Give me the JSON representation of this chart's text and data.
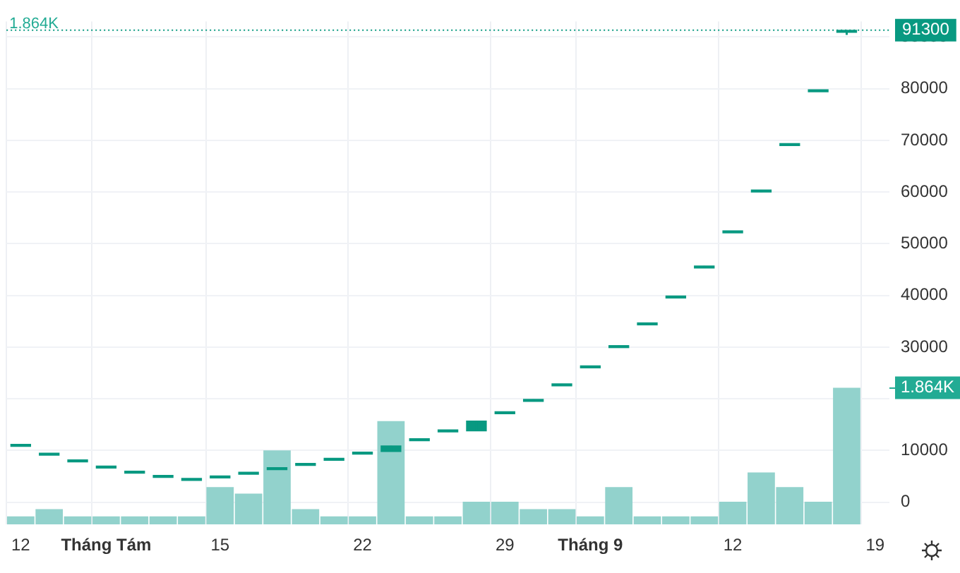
{
  "chart_data": {
    "type": "candlestick",
    "categories": [
      "12",
      null,
      null,
      "Tháng Tám",
      null,
      null,
      null,
      "15",
      null,
      null,
      null,
      null,
      "22",
      null,
      null,
      null,
      null,
      "29",
      null,
      null,
      "Tháng 9",
      null,
      null,
      null,
      null,
      "12",
      null,
      null,
      null,
      null,
      "19"
    ],
    "color": "#089981",
    "ohlc": [
      [
        10800,
        11200,
        10800,
        11200
      ],
      [
        9100,
        9500,
        9100,
        9500
      ],
      [
        7800,
        8200,
        7800,
        8200
      ],
      [
        6600,
        7000,
        6600,
        7000
      ],
      [
        5600,
        6000,
        5600,
        6000
      ],
      [
        4800,
        5200,
        4800,
        5200
      ],
      [
        4200,
        4600,
        4200,
        4600
      ],
      [
        4700,
        5100,
        4700,
        5100
      ],
      [
        5400,
        5800,
        5400,
        5800
      ],
      [
        6300,
        6700,
        6300,
        6700
      ],
      [
        7100,
        7500,
        7100,
        7500
      ],
      [
        8100,
        8500,
        8100,
        8500
      ],
      [
        9300,
        9700,
        9300,
        9700
      ],
      [
        9800,
        10900,
        9800,
        10900
      ],
      [
        11900,
        12300,
        11900,
        12300
      ],
      [
        13600,
        14000,
        13600,
        14000
      ],
      [
        13800,
        15700,
        13800,
        15700
      ],
      [
        17100,
        17500,
        17100,
        17500
      ],
      [
        19500,
        19900,
        19500,
        19900
      ],
      [
        22500,
        22900,
        22500,
        22900
      ],
      [
        26000,
        26400,
        26000,
        26400
      ],
      [
        29900,
        30300,
        29900,
        30300
      ],
      [
        34300,
        34700,
        34300,
        34700
      ],
      [
        39500,
        39900,
        39500,
        39900
      ],
      [
        45300,
        45700,
        45300,
        45700
      ],
      [
        52100,
        52500,
        52100,
        52500
      ],
      [
        60000,
        60400,
        60000,
        60400
      ],
      [
        69000,
        69400,
        69000,
        69400
      ],
      [
        79400,
        79800,
        79400,
        79800
      ],
      [
        90900,
        91300,
        90400,
        91300
      ],
      null
    ],
    "series": [
      {
        "type": "bar",
        "axis": "y2",
        "color": "#92d2cc",
        "values": [
          0.11,
          0.21,
          0.11,
          0.11,
          0.11,
          0.11,
          0.11,
          0.51,
          0.42,
          1.01,
          0.21,
          0.11,
          0.11,
          1.41,
          0.11,
          0.11,
          0.31,
          0.31,
          0.21,
          0.21,
          0.11,
          0.51,
          0.11,
          0.11,
          0.11,
          0.31,
          0.71,
          0.51,
          0.31,
          1.864,
          null
        ]
      }
    ],
    "ylim": [
      -4300,
      93000
    ],
    "yticks": [
      0,
      10000,
      {
        "value": 20000,
        "label": null
      },
      30000,
      40000,
      50000,
      60000,
      70000,
      80000,
      90000
    ],
    "y2lim": [
      0,
      6.86
    ],
    "y2ticks": [
      {
        "value": 1.864,
        "label": "1.864K"
      }
    ],
    "ref_lines": [
      {
        "axis": "y",
        "value": 91300,
        "label": "91300",
        "color": "#089981",
        "line_style": "dotted"
      }
    ],
    "annotations": [
      "1.864K"
    ],
    "grid": true
  }
}
